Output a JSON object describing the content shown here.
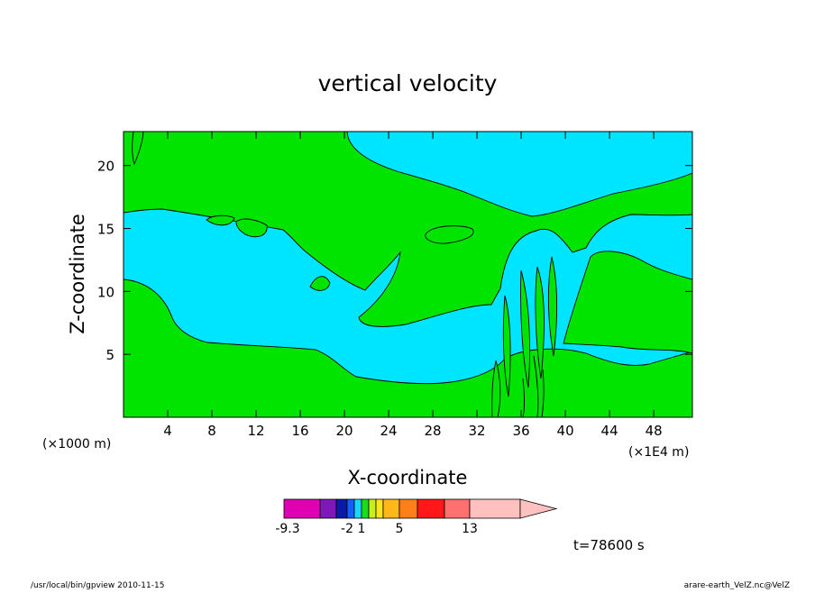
{
  "chart_data": {
    "type": "contour",
    "title": "vertical velocity",
    "xlabel": "X-coordinate",
    "ylabel": "Z-coordinate",
    "x_unit_left": "(×1000 m)",
    "x_unit_right": "(×1E4 m)",
    "xlim": [
      0,
      51.5
    ],
    "ylim": [
      0,
      22.7
    ],
    "xticks": [
      4,
      8,
      12,
      16,
      20,
      24,
      28,
      32,
      36,
      40,
      44,
      48
    ],
    "yticks": [
      5,
      10,
      15,
      20
    ],
    "grid": false,
    "fill_colors": {
      "negative_small": "#00e5ff",
      "positive_small": "#00e400"
    },
    "colorbar": {
      "colors": [
        "#e000b4",
        "#7f18b8",
        "#0a1aa8",
        "#1460ff",
        "#18d8ff",
        "#18e018",
        "#c8f018",
        "#ffe418",
        "#ffb818",
        "#ff7f18",
        "#ff1818",
        "#ff7070",
        "#ffc0c0"
      ],
      "bounds": [
        -9.3,
        -2,
        1,
        5,
        13
      ],
      "labels": [
        "-9.3",
        "-2",
        "1",
        "5",
        "13"
      ]
    },
    "time_label": "t=78600 s"
  },
  "footer": {
    "left": "/usr/local/bin/gpview  2010-11-15",
    "right": "arare-earth_VelZ.nc@VelZ"
  }
}
